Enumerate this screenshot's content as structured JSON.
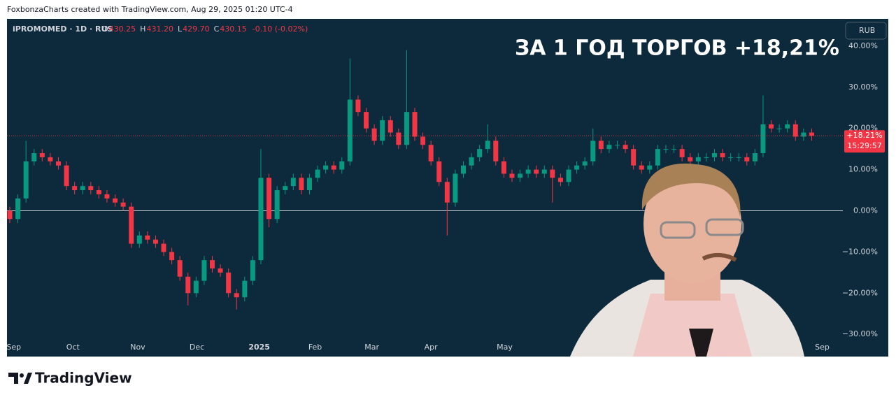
{
  "header": "FoxbonzaCharts created with TradingView.com, Aug 29, 2025 01:20 UTC-4",
  "footer_brand": "TradingView",
  "chart_data": {
    "type": "candlestick",
    "title": "ЗА 1 ГОД ТОРГОВ +18,21%",
    "symbol": "iPROMOMED · 1D · RUS",
    "ohlc_legend": [
      {
        "label": "O",
        "value": "430.25"
      },
      {
        "label": "H",
        "value": "431.20"
      },
      {
        "label": "L",
        "value": "429.70"
      },
      {
        "label": "C",
        "value": "430.15"
      }
    ],
    "change": "-0.10 (-0.02%)",
    "currency": "RUB",
    "last_label": "+18.21%",
    "countdown": "15:29:57",
    "up_color": "#089981",
    "down_color": "#f23645",
    "open": [
      0,
      -2,
      3,
      12,
      14,
      13,
      12,
      11,
      6,
      5,
      6,
      5,
      4,
      3,
      2,
      1,
      -8,
      -6,
      -7,
      -8,
      -10,
      -12,
      -16,
      -20,
      -17,
      -12,
      -14,
      -15,
      -20,
      -21,
      -17,
      -12,
      8,
      -2,
      5,
      6,
      8,
      5,
      8,
      10,
      11,
      10,
      12,
      27,
      24,
      20,
      17,
      22,
      19,
      16,
      24,
      18,
      16,
      12,
      7,
      2,
      9,
      11,
      13,
      15,
      17,
      12,
      9,
      8,
      9,
      10,
      9,
      10,
      8,
      7,
      10,
      11,
      12,
      17,
      15,
      16,
      16,
      15,
      11,
      10,
      11,
      15,
      15,
      15,
      13,
      12,
      13,
      13,
      14,
      13,
      13,
      13,
      12,
      14,
      21,
      20,
      20,
      21,
      18,
      19
    ],
    "high": [
      1,
      4,
      17,
      15,
      15,
      14,
      13,
      12,
      7,
      7,
      7,
      6,
      5,
      4,
      3,
      2,
      -5,
      -5,
      -6,
      -7,
      -9,
      -11,
      -15,
      -16,
      -11,
      -11,
      -13,
      -14,
      -19,
      -16,
      -11,
      15,
      9,
      6,
      7,
      9,
      9,
      9,
      11,
      12,
      12,
      13,
      37,
      28,
      25,
      21,
      23,
      23,
      20,
      39,
      25,
      19,
      17,
      13,
      8,
      10,
      12,
      14,
      16,
      21,
      18,
      13,
      10,
      10,
      11,
      11,
      11,
      11,
      9,
      11,
      12,
      13,
      20,
      18,
      17,
      17,
      17,
      16,
      12,
      12,
      16,
      16,
      16,
      16,
      14,
      14,
      14,
      15,
      15,
      14,
      14,
      14,
      15,
      28,
      22,
      21,
      22,
      22,
      20,
      20
    ],
    "low": [
      -3,
      -3,
      2,
      11,
      12,
      11,
      10,
      5,
      4,
      4,
      4,
      3,
      2,
      1,
      0,
      -9,
      -9,
      -8,
      -9,
      -11,
      -13,
      -17,
      -23,
      -21,
      -18,
      -15,
      -16,
      -21,
      -24,
      -22,
      -18,
      -13,
      -4,
      -3,
      4,
      5,
      4,
      4,
      7,
      9,
      9,
      9,
      11,
      23,
      19,
      16,
      16,
      18,
      15,
      15,
      17,
      15,
      11,
      6,
      -6,
      1,
      8,
      10,
      12,
      14,
      11,
      8,
      7,
      7,
      8,
      8,
      8,
      2,
      6,
      6,
      9,
      10,
      11,
      14,
      14,
      15,
      14,
      10,
      9,
      9,
      10,
      14,
      14,
      12,
      11,
      11,
      12,
      12,
      12,
      12,
      12,
      11,
      11,
      13,
      19,
      19,
      19,
      17,
      17,
      17
    ],
    "close": [
      -2,
      3,
      12,
      14,
      13,
      12,
      11,
      6,
      5,
      6,
      5,
      4,
      3,
      2,
      1,
      -8,
      -6,
      -7,
      -8,
      -10,
      -12,
      -16,
      -20,
      -17,
      -12,
      -14,
      -15,
      -20,
      -21,
      -17,
      -12,
      8,
      -2,
      5,
      6,
      8,
      5,
      8,
      10,
      11,
      10,
      12,
      27,
      24,
      20,
      17,
      22,
      19,
      16,
      24,
      18,
      16,
      12,
      7,
      2,
      9,
      11,
      13,
      15,
      17,
      12,
      9,
      8,
      9,
      10,
      9,
      10,
      8,
      7,
      10,
      11,
      12,
      17,
      15,
      16,
      16,
      15,
      11,
      10,
      11,
      15,
      15,
      15,
      13,
      12,
      13,
      13,
      14,
      13,
      13,
      13,
      12,
      14,
      21,
      20,
      20,
      21,
      18,
      19,
      18.21
    ],
    "xlim": [
      -0.2,
      103
    ],
    "xticks": [
      {
        "value": 0.5,
        "label": "Sep"
      },
      {
        "value": 7.8,
        "label": "Oct"
      },
      {
        "value": 15.8,
        "label": "Nov"
      },
      {
        "value": 23.1,
        "label": "Dec"
      },
      {
        "value": 30.8,
        "label": "2025"
      },
      {
        "value": 37.7,
        "label": "Feb"
      },
      {
        "value": 44.7,
        "label": "Mar"
      },
      {
        "value": 52,
        "label": "Apr"
      },
      {
        "value": 61.1,
        "label": "May"
      },
      {
        "value": 100.3,
        "label": "Sep"
      }
    ],
    "ylim": [
      -35.4,
      46.6
    ],
    "yticks": [
      {
        "value": 40,
        "label": "40.00%"
      },
      {
        "value": 30,
        "label": "30.00%"
      },
      {
        "value": 20,
        "label": "20.00%"
      },
      {
        "value": 10,
        "label": "10.00%"
      },
      {
        "value": 0,
        "label": "0.00%"
      },
      {
        "value": -10,
        "label": "−10.00%"
      },
      {
        "value": -20,
        "label": "−20.00%"
      },
      {
        "value": -30,
        "label": "−30.00%"
      }
    ]
  }
}
